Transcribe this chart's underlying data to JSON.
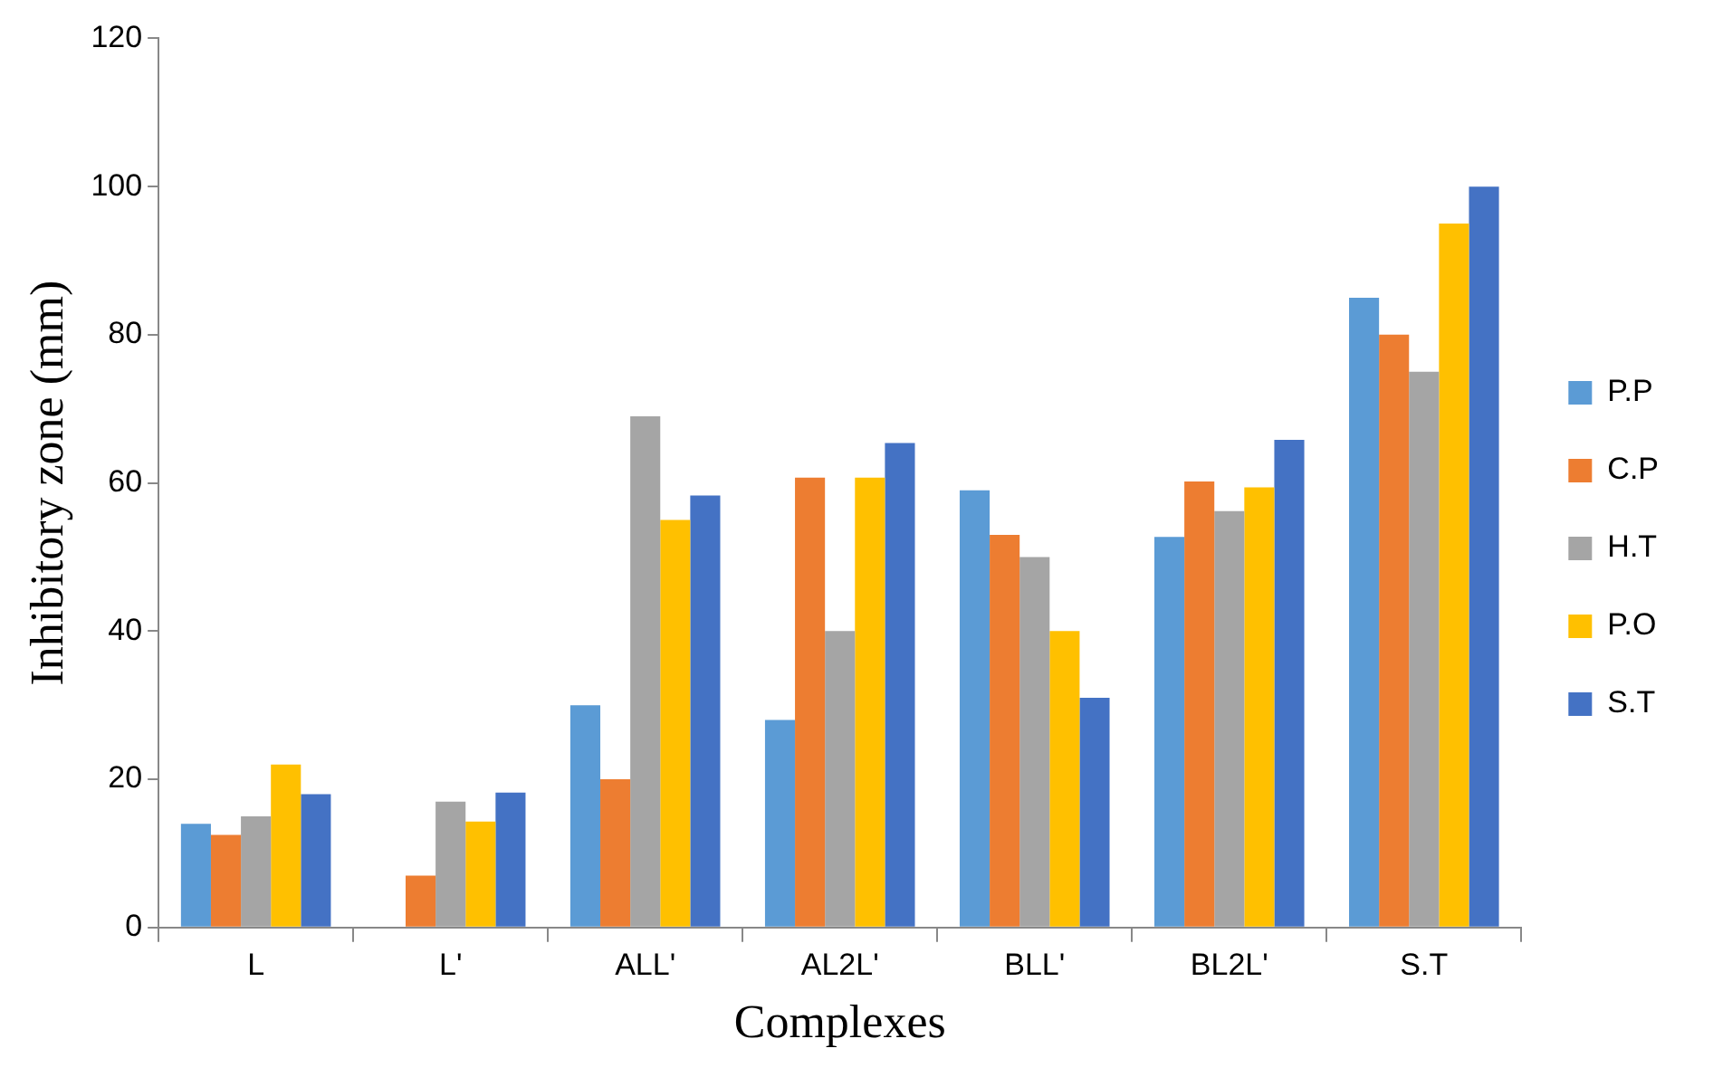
{
  "chart_data": {
    "type": "bar",
    "xlabel": "Complexes",
    "ylabel": "Inhibitory zone (mm)",
    "categories": [
      "L",
      "L'",
      "ALL'",
      "AL2L'",
      "BLL'",
      "BL2L'",
      "S.T"
    ],
    "series": [
      {
        "name": "P.P",
        "color": "#5b9bd5",
        "values": [
          14,
          0,
          30,
          28,
          59,
          52.7,
          85
        ]
      },
      {
        "name": "C.P",
        "color": "#ed7d31",
        "values": [
          12.5,
          7,
          20,
          60.7,
          53,
          60.2,
          80
        ]
      },
      {
        "name": "H.T",
        "color": "#a5a5a5",
        "values": [
          15,
          17,
          69,
          40,
          50,
          56.2,
          75
        ]
      },
      {
        "name": "P.O",
        "color": "#ffc000",
        "values": [
          22,
          14.3,
          55,
          60.7,
          40,
          59.4,
          95
        ]
      },
      {
        "name": "S.T",
        "color": "#4472c4",
        "values": [
          18,
          18.2,
          58.3,
          65.4,
          31,
          65.8,
          100
        ]
      }
    ],
    "ylim": [
      0,
      120
    ],
    "yticks": [
      0,
      20,
      40,
      60,
      80,
      100,
      120
    ],
    "grid": false,
    "legend": "right"
  }
}
